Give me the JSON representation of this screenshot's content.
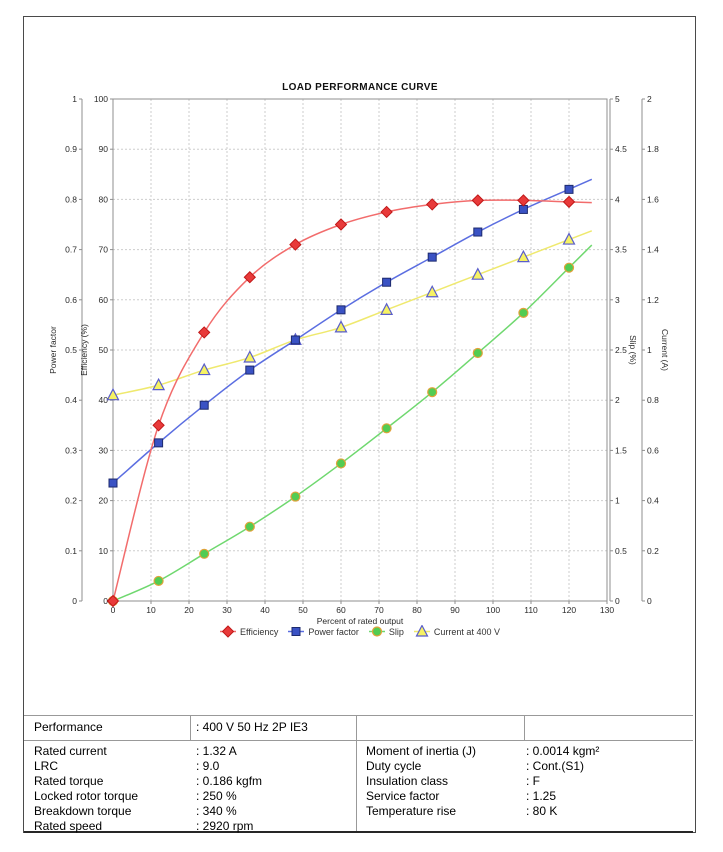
{
  "chart": {
    "title": "LOAD PERFORMANCE CURVE",
    "x_axis": {
      "title": "Percent of rated output",
      "min": 0,
      "max": 130,
      "tick_step": 10
    },
    "y_axes": [
      {
        "name": "power-factor",
        "title": "Power factor",
        "side": "left",
        "min": 0,
        "max": 1,
        "tick_step": 0.1
      },
      {
        "name": "efficiency",
        "title": "Efficiency (%)",
        "side": "left",
        "min": 0,
        "max": 100,
        "tick_step": 10
      },
      {
        "name": "slip",
        "title": "Slip (%)",
        "side": "right",
        "min": 0,
        "max": 5,
        "tick_step": 0.5
      },
      {
        "name": "current",
        "title": "Current (A)",
        "side": "right",
        "min": 0,
        "max": 2,
        "tick_step": 0.2
      }
    ]
  },
  "chart_data": {
    "type": "line",
    "title": "LOAD PERFORMANCE CURVE",
    "xlabel": "Percent of rated output",
    "xlim": [
      0,
      130
    ],
    "grid": true,
    "legend_position": "bottom",
    "x": [
      0,
      12,
      24,
      36,
      48,
      60,
      72,
      84,
      96,
      108,
      120
    ],
    "series": [
      {
        "name": "Efficiency",
        "axis": "Efficiency (%)",
        "ylim": [
          0,
          100
        ],
        "marker": "diamond",
        "line_color": "#f26c6c",
        "marker_fill": "#e83a3a",
        "marker_stroke": "#c01818",
        "values": [
          0,
          35,
          53.5,
          64.5,
          71,
          75,
          77.5,
          79,
          79.8,
          79.8,
          79.5
        ]
      },
      {
        "name": "Power factor",
        "axis": "Power factor",
        "ylim": [
          0,
          1
        ],
        "marker": "square",
        "line_color": "#5b6ee1",
        "marker_fill": "#3a52c4",
        "marker_stroke": "#1d2a6e",
        "values": [
          0.235,
          0.315,
          0.39,
          0.46,
          0.52,
          0.58,
          0.635,
          0.685,
          0.735,
          0.78,
          0.82
        ]
      },
      {
        "name": "Slip",
        "axis": "Slip (%)",
        "ylim": [
          0,
          5
        ],
        "marker": "circle",
        "line_color": "#6fd86f",
        "marker_fill": "#52cc52",
        "marker_stroke": "#e2a23a",
        "values": [
          0,
          0.2,
          0.47,
          0.74,
          1.04,
          1.37,
          1.72,
          2.08,
          2.47,
          2.87,
          3.32
        ]
      },
      {
        "name": "Current at 400 V",
        "axis": "Current (A)",
        "ylim": [
          0,
          2
        ],
        "marker": "triangle",
        "line_color": "#efe96e",
        "marker_fill": "#f6f263",
        "marker_stroke": "#5a5ecb",
        "values": [
          0.82,
          0.86,
          0.92,
          0.97,
          1.04,
          1.09,
          1.16,
          1.23,
          1.3,
          1.37,
          1.44
        ]
      }
    ]
  },
  "table": {
    "performance": {
      "label": "Performance",
      "value": ": 400 V 50 Hz 2P IE3"
    },
    "left_rows": [
      {
        "label": "Rated current",
        "value": ": 1.32 A"
      },
      {
        "label": "LRC",
        "value": ": 9.0"
      },
      {
        "label": "Rated torque",
        "value": ": 0.186 kgfm"
      },
      {
        "label": "Locked rotor torque",
        "value": ": 250 %"
      },
      {
        "label": "Breakdown torque",
        "value": ": 340 %"
      },
      {
        "label": "Rated speed",
        "value": ": 2920 rpm"
      }
    ],
    "right_rows": [
      {
        "label": "Moment of inertia (J)",
        "value": ": 0.0014 kgm²"
      },
      {
        "label": "Duty cycle",
        "value": ": Cont.(S1)"
      },
      {
        "label": "Insulation class",
        "value": ": F"
      },
      {
        "label": "Service factor",
        "value": ": 1.25"
      },
      {
        "label": "Temperature rise",
        "value": ": 80 K"
      }
    ]
  }
}
